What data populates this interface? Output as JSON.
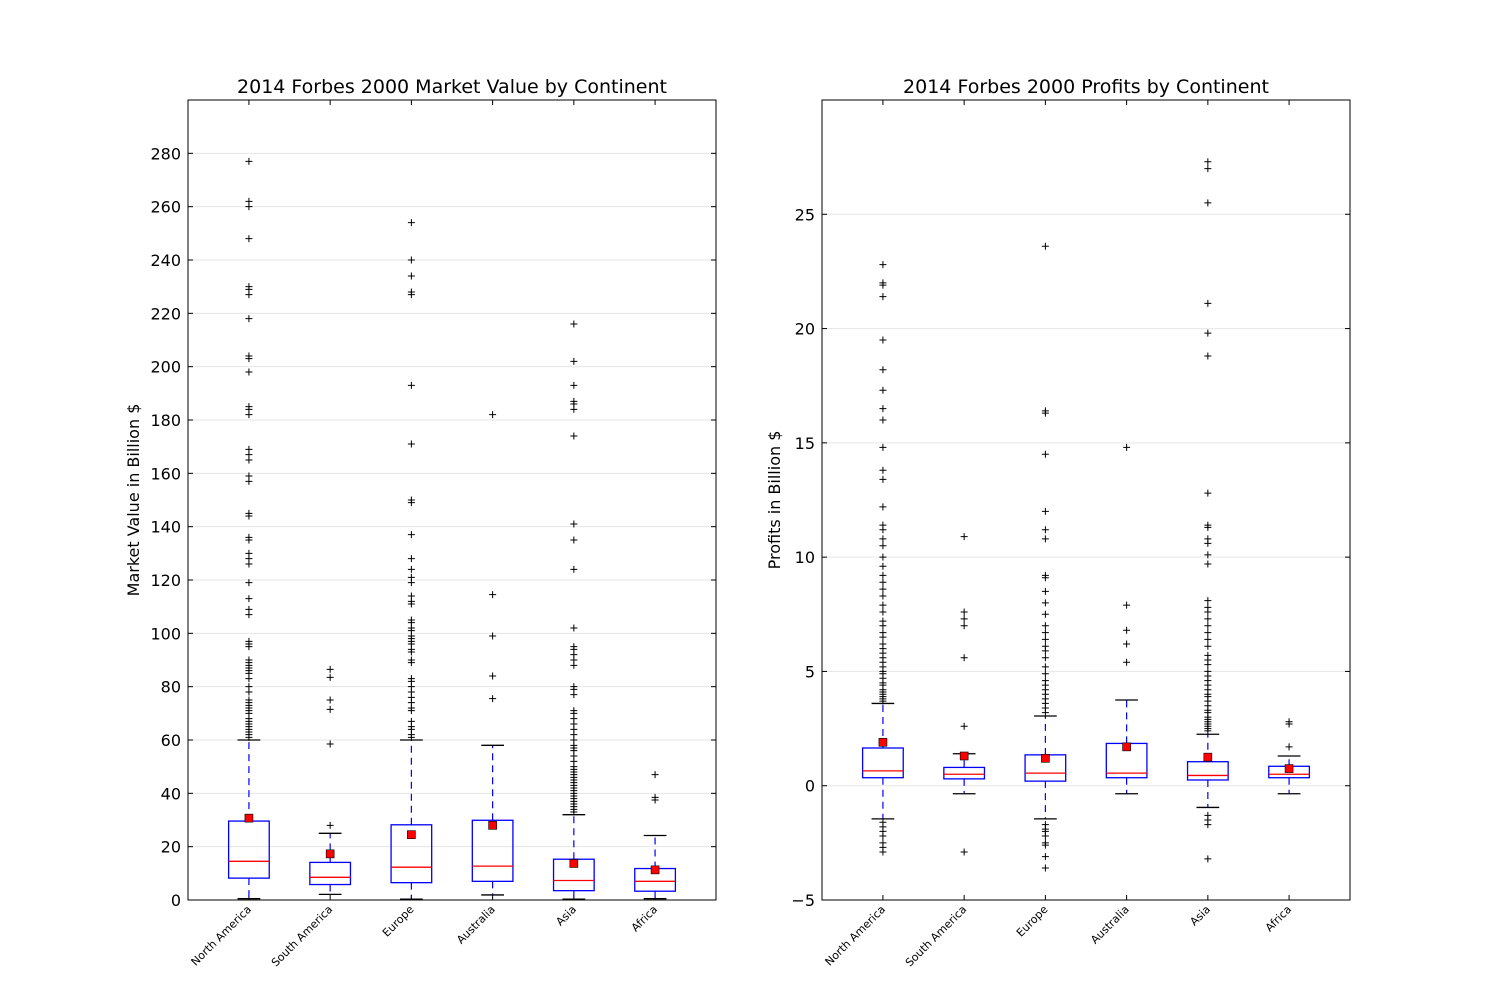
{
  "chart_data": [
    {
      "type": "box",
      "title": "2014 Forbes 2000 Market Value by Continent",
      "xlabel": "",
      "ylabel": "Market Value in Billion $",
      "ylim": [
        0,
        300
      ],
      "yticks": [
        0,
        20,
        40,
        60,
        80,
        100,
        120,
        140,
        160,
        180,
        200,
        220,
        240,
        260,
        280
      ],
      "grid": "horizontal",
      "categories": [
        "North America",
        "South America",
        "Europe",
        "Australia",
        "Asia",
        "Africa"
      ],
      "boxes": [
        {
          "whisker_low": 0.5,
          "q1": 8.2,
          "median": 14.5,
          "q3": 29.6,
          "whisker_high": 60.0,
          "mean": 30.7,
          "outliers": [
            61,
            62,
            63,
            64,
            65,
            66,
            67,
            68,
            70,
            71,
            72,
            73,
            74,
            75,
            78,
            80,
            83,
            85,
            86,
            87,
            88,
            89,
            90,
            95,
            96,
            97,
            107,
            109,
            113,
            119,
            126,
            128,
            130,
            135,
            136,
            144,
            145,
            157,
            159,
            165,
            167,
            169,
            182,
            184,
            185,
            198,
            203,
            204,
            218,
            227,
            229,
            230,
            248,
            260,
            262,
            277
          ]
        },
        {
          "whisker_low": 2.1,
          "q1": 5.8,
          "median": 8.5,
          "q3": 14.1,
          "whisker_high": 25.0,
          "mean": 17.3,
          "outliers": [
            28,
            58.5,
            71.5,
            75,
            83.5,
            86.5
          ]
        },
        {
          "whisker_low": 0.3,
          "q1": 6.5,
          "median": 12.3,
          "q3": 28.2,
          "whisker_high": 60.0,
          "mean": 24.5,
          "outliers": [
            61,
            62,
            64,
            65,
            67,
            71,
            72,
            74,
            76,
            78,
            80,
            82,
            83,
            89,
            90,
            93,
            94,
            96,
            97,
            98,
            99,
            101,
            102,
            104,
            105,
            111,
            112,
            114,
            119,
            121,
            124,
            128,
            137,
            149,
            150,
            171,
            193,
            227,
            228,
            234,
            240,
            254
          ]
        },
        {
          "whisker_low": 1.9,
          "q1": 7.0,
          "median": 12.7,
          "q3": 29.9,
          "whisker_high": 58.0,
          "mean": 28.0,
          "outliers": [
            75.5,
            84,
            99,
            114.5,
            182
          ]
        },
        {
          "whisker_low": 0.3,
          "q1": 3.5,
          "median": 7.3,
          "q3": 15.3,
          "whisker_high": 32.0,
          "mean": 13.7,
          "outliers": [
            33,
            34,
            35,
            36,
            37,
            38,
            39,
            40,
            41,
            42,
            43,
            44,
            45,
            46,
            47,
            48,
            49,
            50,
            52,
            54,
            56,
            57,
            58,
            60,
            62,
            64,
            66,
            68,
            70,
            71,
            77,
            79,
            80,
            88,
            90,
            92,
            94,
            95,
            102,
            124,
            135,
            141,
            174,
            184,
            186,
            187,
            193,
            202,
            216
          ]
        },
        {
          "whisker_low": 0.5,
          "q1": 3.3,
          "median": 7.0,
          "q3": 11.8,
          "whisker_high": 24.2,
          "mean": 11.3,
          "outliers": [
            37.5,
            38.5,
            47
          ]
        }
      ]
    },
    {
      "type": "box",
      "title": "2014 Forbes 2000 Profits by Continent",
      "xlabel": "",
      "ylabel": "Profits in Billion $",
      "ylim": [
        -5,
        30
      ],
      "yticks": [
        -5,
        0,
        5,
        10,
        15,
        20,
        25
      ],
      "grid": "horizontal",
      "categories": [
        "North America",
        "South America",
        "Europe",
        "Australia",
        "Asia",
        "Africa"
      ],
      "boxes": [
        {
          "whisker_low": -1.45,
          "q1": 0.35,
          "median": 0.65,
          "q3": 1.65,
          "whisker_high": 3.6,
          "mean": 1.9,
          "outliers": [
            -1.6,
            -1.8,
            -2.0,
            -2.2,
            -2.5,
            -2.7,
            -2.9,
            3.7,
            3.8,
            3.9,
            4.0,
            4.1,
            4.2,
            4.4,
            4.5,
            4.7,
            4.9,
            5.0,
            5.2,
            5.4,
            5.6,
            5.8,
            6.0,
            6.2,
            6.5,
            6.7,
            7.0,
            7.2,
            7.6,
            7.9,
            8.3,
            8.6,
            8.9,
            9.2,
            9.6,
            10.0,
            10.5,
            10.8,
            11.2,
            11.4,
            12.2,
            13.4,
            13.8,
            14.8,
            16.0,
            16.5,
            17.3,
            18.2,
            19.5,
            21.4,
            21.9,
            22.0,
            22.8
          ]
        },
        {
          "whisker_low": -0.35,
          "q1": 0.3,
          "median": 0.5,
          "q3": 0.8,
          "whisker_high": 1.4,
          "mean": 1.3,
          "outliers": [
            -2.9,
            2.6,
            5.6,
            7.0,
            7.3,
            7.6,
            10.9
          ]
        },
        {
          "whisker_low": -1.45,
          "q1": 0.2,
          "median": 0.55,
          "q3": 1.35,
          "whisker_high": 3.05,
          "mean": 1.2,
          "outliers": [
            -1.7,
            -1.9,
            -2.0,
            -2.2,
            -2.5,
            -2.6,
            -3.1,
            -3.6,
            3.2,
            3.4,
            3.6,
            3.8,
            4.0,
            4.2,
            4.4,
            4.6,
            4.9,
            5.2,
            5.6,
            5.9,
            6.1,
            6.4,
            6.7,
            7.0,
            7.5,
            8.0,
            8.5,
            9.1,
            9.2,
            10.8,
            11.2,
            12.0,
            14.5,
            16.3,
            16.4,
            23.6
          ]
        },
        {
          "whisker_low": -0.35,
          "q1": 0.35,
          "median": 0.55,
          "q3": 1.85,
          "whisker_high": 3.75,
          "mean": 1.7,
          "outliers": [
            5.4,
            6.2,
            6.8,
            7.9,
            14.8
          ]
        },
        {
          "whisker_low": -0.95,
          "q1": 0.25,
          "median": 0.45,
          "q3": 1.05,
          "whisker_high": 2.25,
          "mean": 1.25,
          "outliers": [
            -1.3,
            -1.5,
            -1.7,
            -3.2,
            2.4,
            2.5,
            2.6,
            2.7,
            2.8,
            2.9,
            3.0,
            3.2,
            3.3,
            3.5,
            3.7,
            3.9,
            4.0,
            4.2,
            4.4,
            4.6,
            4.8,
            5.0,
            5.3,
            5.5,
            5.7,
            6.1,
            6.4,
            6.7,
            7.0,
            7.3,
            7.6,
            7.8,
            8.1,
            9.7,
            10.1,
            10.6,
            10.8,
            11.3,
            11.4,
            12.8,
            18.8,
            19.8,
            21.1,
            25.5,
            27.0,
            27.3
          ]
        },
        {
          "whisker_low": -0.35,
          "q1": 0.35,
          "median": 0.5,
          "q3": 0.85,
          "whisker_high": 1.3,
          "mean": 0.75,
          "outliers": [
            1.7,
            2.7,
            2.8
          ]
        }
      ]
    }
  ],
  "colors": {
    "box": "#0000ff",
    "median": "#ff0000",
    "mean_marker": "#ff0000",
    "whisker": "#0000ff",
    "cap": "#000000",
    "outlier": "#000000",
    "grid": "#e6e6e6"
  }
}
